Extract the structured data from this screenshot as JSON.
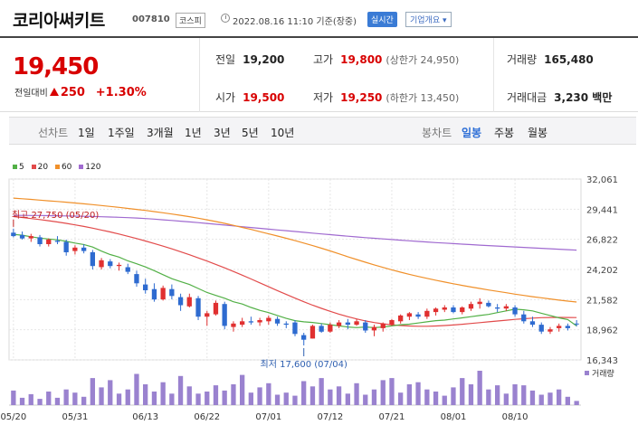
{
  "header": {
    "name": "코리아써키트",
    "code": "007810",
    "market": "코스피",
    "datetime": "2022.08.16 11:10 기준(장중)",
    "realtime_btn": "실시간",
    "info_btn": "기업개요 ▾"
  },
  "quote": {
    "price": "19,450",
    "change_label": "전일대비",
    "change_abs": "250",
    "change_pct": "+1.30%",
    "prev": {
      "label": "전일",
      "value": "19,200"
    },
    "open": {
      "label": "시가",
      "value": "19,500"
    },
    "high": {
      "label": "고가",
      "value": "19,800",
      "sub": "(상한가 24,950)"
    },
    "low": {
      "label": "저가",
      "value": "19,250",
      "sub": "(하한가 13,450)"
    },
    "volume": {
      "label": "거래량",
      "value": "165,480"
    },
    "amount": {
      "label": "거래대금",
      "value": "3,230 백만"
    }
  },
  "periods": {
    "line_label": "선차트",
    "line_items": [
      "1일",
      "1주일",
      "3개월",
      "1년",
      "3년",
      "5년",
      "10년"
    ],
    "candle_label": "봉차트",
    "candle_items": [
      "일봉",
      "주봉",
      "월봉"
    ],
    "candle_active": "일봉"
  },
  "colors": {
    "up": "#e03030",
    "down": "#2e6bd0",
    "ma5": "#52b046",
    "ma20": "#e24b4b",
    "ma60": "#f0902a",
    "ma120": "#a06ad0",
    "volume": "#9a82cf"
  },
  "chart_data": {
    "type": "candlestick",
    "legend": [
      {
        "label": "5",
        "color": "#52b046"
      },
      {
        "label": "20",
        "color": "#e24b4b"
      },
      {
        "label": "60",
        "color": "#f0902a"
      },
      {
        "label": "120",
        "color": "#a06ad0"
      }
    ],
    "y_ticks": [
      "32,061",
      "29,441",
      "26,822",
      "24,202",
      "21,582",
      "18,962",
      "16,343"
    ],
    "ylim": [
      16343,
      32061
    ],
    "x_ticks": [
      "05/20",
      "05/31",
      "06/13",
      "06/22",
      "07/01",
      "07/12",
      "07/21",
      "08/01",
      "08/10"
    ],
    "x_tick_index": [
      0,
      7,
      15,
      22,
      29,
      36,
      43,
      50,
      57
    ],
    "annotations": {
      "high": "최고 27,750 (05/20)",
      "low": "최저 17,600 (07/04)"
    },
    "volume_label": "거래량",
    "candles": [
      [
        27400,
        27750,
        27000,
        27100
      ],
      [
        27200,
        27500,
        26800,
        26900
      ],
      [
        26900,
        27300,
        26600,
        27100
      ],
      [
        27000,
        27200,
        26200,
        26400
      ],
      [
        26400,
        26900,
        26200,
        26800
      ],
      [
        26700,
        27100,
        26400,
        26600
      ],
      [
        26600,
        26800,
        25400,
        25700
      ],
      [
        25800,
        26300,
        25500,
        26100
      ],
      [
        26100,
        26400,
        25600,
        25800
      ],
      [
        25700,
        25900,
        24200,
        24500
      ],
      [
        24400,
        25200,
        24200,
        25000
      ],
      [
        24900,
        25100,
        24300,
        24500
      ],
      [
        24500,
        24800,
        24100,
        24600
      ],
      [
        24400,
        24700,
        23800,
        24000
      ],
      [
        23800,
        24100,
        22700,
        23000
      ],
      [
        22900,
        23400,
        22100,
        22400
      ],
      [
        22500,
        23000,
        21400,
        21600
      ],
      [
        21600,
        22800,
        21500,
        22600
      ],
      [
        22500,
        22900,
        21600,
        21900
      ],
      [
        21800,
        22100,
        20600,
        21100
      ],
      [
        21000,
        22100,
        20900,
        21800
      ],
      [
        21700,
        21900,
        19800,
        20100
      ],
      [
        20100,
        20600,
        19300,
        20400
      ],
      [
        20300,
        21500,
        20200,
        21300
      ],
      [
        21200,
        21400,
        19000,
        19300
      ],
      [
        19200,
        19700,
        18800,
        19500
      ],
      [
        19400,
        20000,
        19200,
        19700
      ],
      [
        19700,
        20100,
        19400,
        19600
      ],
      [
        19600,
        20000,
        19300,
        19800
      ],
      [
        19700,
        20200,
        19400,
        20000
      ],
      [
        19900,
        20100,
        19300,
        19500
      ],
      [
        19500,
        19700,
        19100,
        19400
      ],
      [
        19600,
        19800,
        18400,
        18600
      ],
      [
        18500,
        18700,
        17600,
        18100
      ],
      [
        18200,
        19400,
        18200,
        19300
      ],
      [
        19300,
        19500,
        18700,
        18800
      ],
      [
        18800,
        19600,
        18700,
        19400
      ],
      [
        19300,
        19800,
        19100,
        19600
      ],
      [
        19600,
        19900,
        19000,
        19400
      ],
      [
        19400,
        19900,
        19300,
        19700
      ],
      [
        19600,
        19800,
        18700,
        18900
      ],
      [
        18900,
        19400,
        18400,
        19200
      ],
      [
        19100,
        19600,
        18800,
        19500
      ],
      [
        19400,
        19900,
        19300,
        19800
      ],
      [
        19700,
        20300,
        19500,
        20200
      ],
      [
        20100,
        20500,
        19800,
        20400
      ],
      [
        20300,
        20500,
        19900,
        20100
      ],
      [
        20100,
        20800,
        19900,
        20600
      ],
      [
        20500,
        20900,
        20200,
        20800
      ],
      [
        20700,
        21100,
        20500,
        20900
      ],
      [
        20900,
        21100,
        20400,
        20500
      ],
      [
        20500,
        21000,
        20300,
        20900
      ],
      [
        20800,
        21400,
        20600,
        21200
      ],
      [
        21200,
        21700,
        20800,
        21400
      ],
      [
        21300,
        21500,
        20900,
        21000
      ],
      [
        20900,
        21200,
        20500,
        20800
      ],
      [
        20800,
        21200,
        20600,
        21000
      ],
      [
        20900,
        21100,
        20100,
        20300
      ],
      [
        20300,
        20600,
        19500,
        19700
      ],
      [
        19700,
        20100,
        19200,
        19400
      ],
      [
        19400,
        19600,
        18600,
        18800
      ],
      [
        18800,
        19200,
        18600,
        19000
      ],
      [
        19100,
        19500,
        18800,
        19300
      ],
      [
        19300,
        19500,
        18900,
        19100
      ],
      [
        19500,
        19800,
        19250,
        19450
      ]
    ],
    "volume": [
      28,
      14,
      21,
      12,
      26,
      14,
      30,
      24,
      16,
      52,
      34,
      48,
      22,
      30,
      60,
      40,
      26,
      44,
      22,
      56,
      36,
      22,
      26,
      38,
      28,
      40,
      58,
      24,
      34,
      42,
      20,
      24,
      18,
      46,
      36,
      52,
      30,
      36,
      22,
      42,
      20,
      30,
      48,
      52,
      24,
      40,
      44,
      30,
      26,
      18,
      34,
      52,
      40,
      66,
      30,
      38,
      22,
      40,
      38,
      28,
      20,
      24,
      30,
      16,
      8
    ],
    "ma5": [
      27250,
      27180,
      27050,
      26930,
      26850,
      26780,
      26650,
      26500,
      26370,
      26150,
      25800,
      25500,
      25280,
      24950,
      24700,
      24420,
      24100,
      23750,
      23400,
      23150,
      22900,
      22550,
      22200,
      21950,
      21700,
      21400,
      21200,
      20900,
      20650,
      20450,
      20200,
      19950,
      19750,
      19650,
      19600,
      19500,
      19400,
      19300,
      19200,
      19150,
      19200,
      19150,
      19200,
      19300,
      19400,
      19450,
      19550,
      19650,
      19750,
      19800,
      19900,
      20000,
      20100,
      20200,
      20300,
      20450,
      20600,
      20750,
      20700,
      20600,
      20400,
      20200,
      20000,
      19850,
      19300
    ],
    "ma20": [
      28800,
      28720,
      28630,
      28540,
      28440,
      28330,
      28210,
      28080,
      27940,
      27790,
      27630,
      27460,
      27280,
      27090,
      26890,
      26680,
      26460,
      26230,
      25990,
      25740,
      25480,
      25210,
      24930,
      24640,
      24340,
      24030,
      23710,
      23380,
      23040,
      22700,
      22360,
      22030,
      21710,
      21400,
      21100,
      20820,
      20560,
      20320,
      20100,
      19900,
      19730,
      19590,
      19480,
      19390,
      19330,
      19290,
      19270,
      19270,
      19290,
      19330,
      19380,
      19440,
      19510,
      19580,
      19650,
      19720,
      19790,
      19860,
      19920,
      19970,
      20010,
      20030,
      20040,
      20030,
      20020
    ],
    "ma60": [
      30400,
      30350,
      30290,
      30230,
      30170,
      30110,
      30050,
      29980,
      29910,
      29840,
      29760,
      29680,
      29600,
      29510,
      29420,
      29330,
      29230,
      29130,
      29020,
      28910,
      28790,
      28660,
      28520,
      28370,
      28210,
      28040,
      27860,
      27680,
      27490,
      27300,
      27110,
      26910,
      26710,
      26500,
      26280,
      26050,
      25810,
      25560,
      25310,
      25070,
      24830,
      24600,
      24380,
      24170,
      23970,
      23780,
      23600,
      23430,
      23270,
      23110,
      22960,
      22820,
      22680,
      22550,
      22420,
      22300,
      22180,
      22060,
      21950,
      21840,
      21740,
      21640,
      21540,
      21450,
      21370
    ],
    "ma120": [
      28900,
      28900,
      28895,
      28890,
      28880,
      28870,
      28855,
      28840,
      28825,
      28805,
      28785,
      28760,
      28735,
      28705,
      28670,
      28630,
      28580,
      28520,
      28460,
      28400,
      28335,
      28270,
      28200,
      28130,
      28060,
      27990,
      27920,
      27850,
      27780,
      27710,
      27640,
      27570,
      27500,
      27430,
      27360,
      27290,
      27225,
      27160,
      27095,
      27030,
      26970,
      26910,
      26855,
      26800,
      26745,
      26690,
      26640,
      26590,
      26540,
      26495,
      26450,
      26405,
      26360,
      26320,
      26280,
      26240,
      26200,
      26160,
      26120,
      26080,
      26040,
      26000,
      25960,
      25920,
      25880
    ]
  }
}
